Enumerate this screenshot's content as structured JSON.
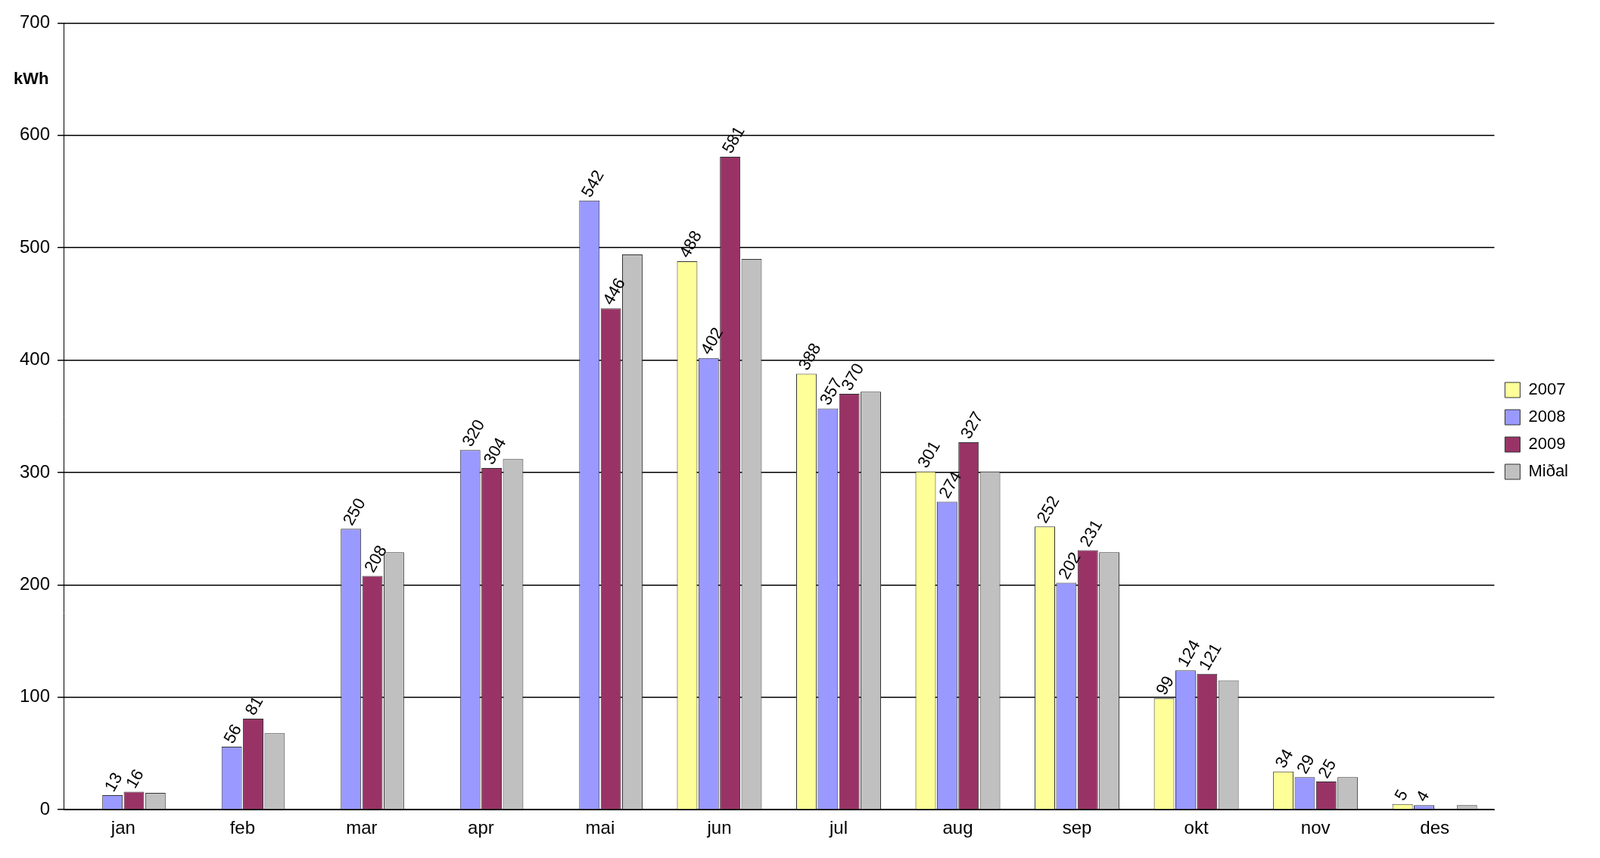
{
  "chart_data": {
    "type": "bar",
    "y_label": "kWh",
    "categories": [
      "jan",
      "feb",
      "mar",
      "apr",
      "mai",
      "jun",
      "jul",
      "aug",
      "sep",
      "okt",
      "nov",
      "des"
    ],
    "series": [
      {
        "name": "2007",
        "color": "#ffff99",
        "values": [
          null,
          null,
          null,
          null,
          null,
          488,
          388,
          301,
          252,
          99,
          34,
          5
        ]
      },
      {
        "name": "2008",
        "color": "#9999ff",
        "values": [
          13,
          56,
          250,
          320,
          542,
          402,
          357,
          274,
          202,
          124,
          29,
          4
        ]
      },
      {
        "name": "2009",
        "color": "#993366",
        "values": [
          16,
          81,
          208,
          304,
          446,
          581,
          370,
          327,
          231,
          121,
          25,
          null
        ]
      },
      {
        "name": "Miðal",
        "color": "#c0c0c0",
        "data_labels": false,
        "values": [
          15,
          68,
          229,
          312,
          494,
          490,
          372,
          301,
          229,
          115,
          29,
          4
        ]
      }
    ],
    "ylim": [
      0,
      700
    ],
    "yticks": [
      0,
      100,
      200,
      300,
      400,
      500,
      600,
      700
    ],
    "grid": true,
    "legend": "right",
    "data_labels": true
  }
}
